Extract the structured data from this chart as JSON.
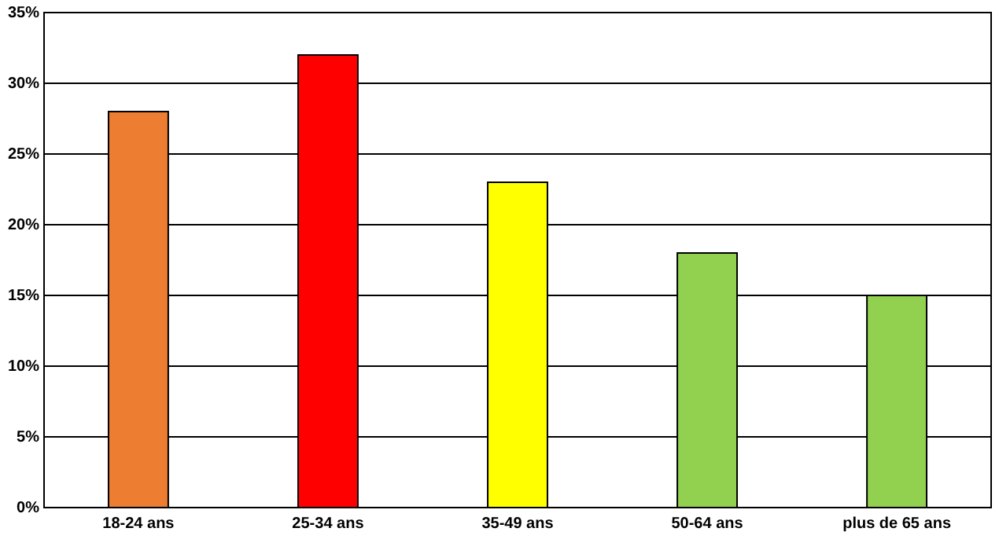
{
  "chart_data": {
    "type": "bar",
    "categories": [
      "18-24 ans",
      "25-34 ans",
      "35-49 ans",
      "50-64 ans",
      "plus de 65 ans"
    ],
    "values": [
      28,
      32,
      23,
      18,
      15
    ],
    "colors": [
      "#ed7d31",
      "#ff0000",
      "#ffff00",
      "#92d050",
      "#92d050"
    ],
    "ylim": [
      0,
      35
    ],
    "yticks": [
      {
        "value": 0,
        "label": "0%"
      },
      {
        "value": 5,
        "label": "5%"
      },
      {
        "value": 10,
        "label": "10%"
      },
      {
        "value": 15,
        "label": "15%"
      },
      {
        "value": 20,
        "label": "20%"
      },
      {
        "value": 25,
        "label": "25%"
      },
      {
        "value": 30,
        "label": "30%"
      },
      {
        "value": 35,
        "label": "35%"
      }
    ],
    "grid": "y"
  }
}
